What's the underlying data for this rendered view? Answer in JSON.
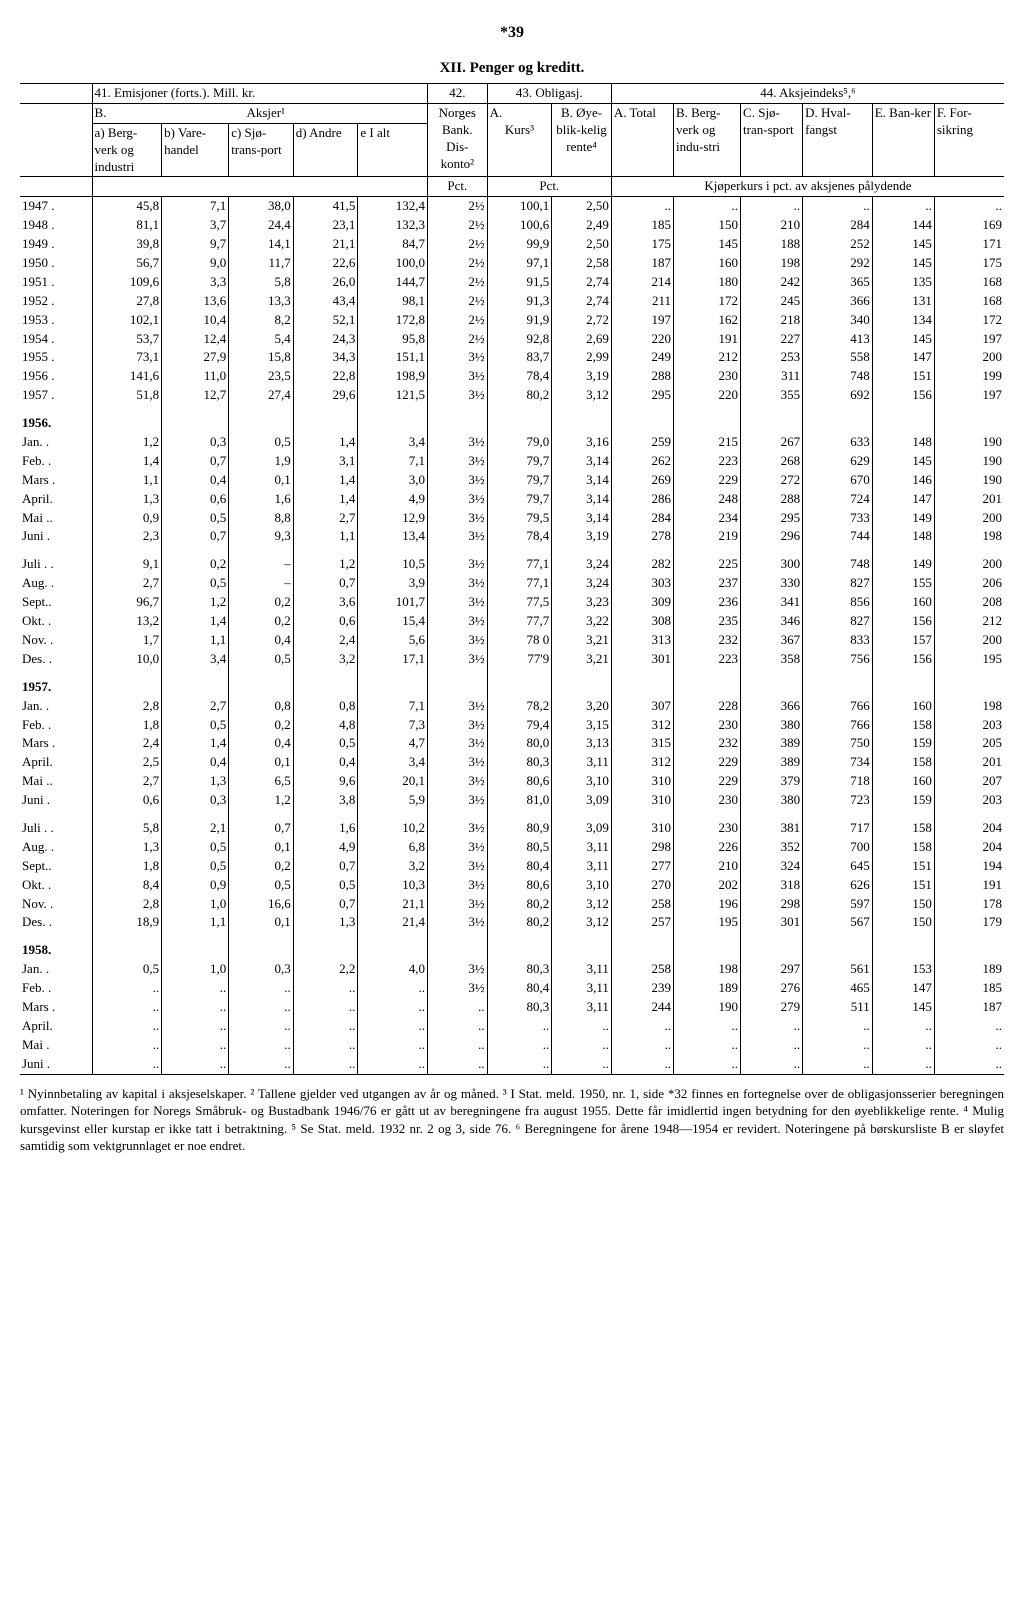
{
  "page_number": "*39",
  "title": "XII. Penger og kreditt.",
  "header": {
    "h41": "41.  Emisjoner (forts.).  Mill. kr.",
    "h42": "42.",
    "h43": "43. Obligasj.",
    "h44": "44.  Aksjeindeks⁵,⁶",
    "B": "B.",
    "Aksjer": "Aksjer¹",
    "Norges": "Norges Bank. Dis-konto²",
    "A": "A.",
    "Bop": "B. Øye-blik-kelig rente⁴",
    "Kurs": "Kurs³",
    "a": "a) Berg-verk og industri",
    "b": "b) Vare-handel",
    "c": "c) Sjø-trans-port",
    "d": "d) Andre",
    "e": "e I alt",
    "Ait": "A. Total",
    "Bit": "B. Berg-verk og indu-stri",
    "Cit": "C. Sjø-tran-sport",
    "Dit": "D. Hval-fangst",
    "Eit": "E. Ban-ker",
    "Fit": "F. For-sikring",
    "Pct": "Pct.",
    "Kjoper": "Kjøperkurs i pct. av aksjenes pålydende"
  },
  "rows": [
    {
      "label": "1947 .",
      "c": [
        "45,8",
        "7,1",
        "38,0",
        "41,5",
        "132,4",
        "2½",
        "100,1",
        "2,50",
        "..",
        "..",
        "..",
        "..",
        "..",
        ".."
      ]
    },
    {
      "label": "1948 .",
      "c": [
        "81,1",
        "3,7",
        "24,4",
        "23,1",
        "132,3",
        "2½",
        "100,6",
        "2,49",
        "185",
        "150",
        "210",
        "284",
        "144",
        "169"
      ]
    },
    {
      "label": "1949 .",
      "c": [
        "39,8",
        "9,7",
        "14,1",
        "21,1",
        "84,7",
        "2½",
        "99,9",
        "2,50",
        "175",
        "145",
        "188",
        "252",
        "145",
        "171"
      ]
    },
    {
      "label": "1950 .",
      "c": [
        "56,7",
        "9,0",
        "11,7",
        "22,6",
        "100,0",
        "2½",
        "97,1",
        "2,58",
        "187",
        "160",
        "198",
        "292",
        "145",
        "175"
      ]
    },
    {
      "label": "1951 .",
      "c": [
        "109,6",
        "3,3",
        "5,8",
        "26,0",
        "144,7",
        "2½",
        "91,5",
        "2,74",
        "214",
        "180",
        "242",
        "365",
        "135",
        "168"
      ]
    },
    {
      "label": "1952 .",
      "c": [
        "27,8",
        "13,6",
        "13,3",
        "43,4",
        "98,1",
        "2½",
        "91,3",
        "2,74",
        "211",
        "172",
        "245",
        "366",
        "131",
        "168"
      ]
    },
    {
      "label": "1953 .",
      "c": [
        "102,1",
        "10,4",
        "8,2",
        "52,1",
        "172,8",
        "2½",
        "91,9",
        "2,72",
        "197",
        "162",
        "218",
        "340",
        "134",
        "172"
      ]
    },
    {
      "label": "1954 .",
      "c": [
        "53,7",
        "12,4",
        "5,4",
        "24,3",
        "95,8",
        "2½",
        "92,8",
        "2,69",
        "220",
        "191",
        "227",
        "413",
        "145",
        "197"
      ]
    },
    {
      "label": "1955 .",
      "c": [
        "73,1",
        "27,9",
        "15,8",
        "34,3",
        "151,1",
        "3½",
        "83,7",
        "2,99",
        "249",
        "212",
        "253",
        "558",
        "147",
        "200"
      ]
    },
    {
      "label": "1956 .",
      "c": [
        "141,6",
        "11,0",
        "23,5",
        "22,8",
        "198,9",
        "3½",
        "78,4",
        "3,19",
        "288",
        "230",
        "311",
        "748",
        "151",
        "199"
      ]
    },
    {
      "label": "1957 .",
      "c": [
        "51,8",
        "12,7",
        "27,4",
        "29,6",
        "121,5",
        "3½",
        "80,2",
        "3,12",
        "295",
        "220",
        "355",
        "692",
        "156",
        "197"
      ]
    },
    {
      "label": "1956.",
      "head": true
    },
    {
      "label": "Jan. .",
      "c": [
        "1,2",
        "0,3",
        "0,5",
        "1,4",
        "3,4",
        "3½",
        "79,0",
        "3,16",
        "259",
        "215",
        "267",
        "633",
        "148",
        "190"
      ]
    },
    {
      "label": "Feb. .",
      "c": [
        "1,4",
        "0,7",
        "1,9",
        "3,1",
        "7,1",
        "3½",
        "79,7",
        "3,14",
        "262",
        "223",
        "268",
        "629",
        "145",
        "190"
      ]
    },
    {
      "label": "Mars .",
      "c": [
        "1,1",
        "0,4",
        "0,1",
        "1,4",
        "3,0",
        "3½",
        "79,7",
        "3,14",
        "269",
        "229",
        "272",
        "670",
        "146",
        "190"
      ]
    },
    {
      "label": "April.",
      "c": [
        "1,3",
        "0,6",
        "1,6",
        "1,4",
        "4,9",
        "3½",
        "79,7",
        "3,14",
        "286",
        "248",
        "288",
        "724",
        "147",
        "201"
      ]
    },
    {
      "label": "Mai ..",
      "c": [
        "0,9",
        "0,5",
        "8,8",
        "2,7",
        "12,9",
        "3½",
        "79,5",
        "3,14",
        "284",
        "234",
        "295",
        "733",
        "149",
        "200"
      ]
    },
    {
      "label": "Juni .",
      "c": [
        "2,3",
        "0,7",
        "9,3",
        "1,1",
        "13,4",
        "3½",
        "78,4",
        "3,19",
        "278",
        "219",
        "296",
        "744",
        "148",
        "198"
      ]
    },
    {
      "label": "Juli . .",
      "gap": true,
      "c": [
        "9,1",
        "0,2",
        "–",
        "1,2",
        "10,5",
        "3½",
        "77,1",
        "3,24",
        "282",
        "225",
        "300",
        "748",
        "149",
        "200"
      ]
    },
    {
      "label": "Aug. .",
      "c": [
        "2,7",
        "0,5",
        "–",
        "0,7",
        "3,9",
        "3½",
        "77,1",
        "3,24",
        "303",
        "237",
        "330",
        "827",
        "155",
        "206"
      ]
    },
    {
      "label": "Sept..",
      "c": [
        "96,7",
        "1,2",
        "0,2",
        "3,6",
        "101,7",
        "3½",
        "77,5",
        "3,23",
        "309",
        "236",
        "341",
        "856",
        "160",
        "208"
      ]
    },
    {
      "label": "Okt. .",
      "c": [
        "13,2",
        "1,4",
        "0,2",
        "0,6",
        "15,4",
        "3½",
        "77,7",
        "3,22",
        "308",
        "235",
        "346",
        "827",
        "156",
        "212"
      ]
    },
    {
      "label": "Nov. .",
      "c": [
        "1,7",
        "1,1",
        "0,4",
        "2,4",
        "5,6",
        "3½",
        "78 0",
        "3,21",
        "313",
        "232",
        "367",
        "833",
        "157",
        "200"
      ]
    },
    {
      "label": "Des. .",
      "c": [
        "10,0",
        "3,4",
        "0,5",
        "3,2",
        "17,1",
        "3½",
        "77'9",
        "3,21",
        "301",
        "223",
        "358",
        "756",
        "156",
        "195"
      ]
    },
    {
      "label": "1957.",
      "head": true
    },
    {
      "label": "Jan. .",
      "c": [
        "2,8",
        "2,7",
        "0,8",
        "0,8",
        "7,1",
        "3½",
        "78,2",
        "3,20",
        "307",
        "228",
        "366",
        "766",
        "160",
        "198"
      ]
    },
    {
      "label": "Feb. .",
      "c": [
        "1,8",
        "0,5",
        "0,2",
        "4,8",
        "7,3",
        "3½",
        "79,4",
        "3,15",
        "312",
        "230",
        "380",
        "766",
        "158",
        "203"
      ]
    },
    {
      "label": "Mars .",
      "c": [
        "2,4",
        "1,4",
        "0,4",
        "0,5",
        "4,7",
        "3½",
        "80,0",
        "3,13",
        "315",
        "232",
        "389",
        "750",
        "159",
        "205"
      ]
    },
    {
      "label": "April.",
      "c": [
        "2,5",
        "0,4",
        "0,1",
        "0,4",
        "3,4",
        "3½",
        "80,3",
        "3,11",
        "312",
        "229",
        "389",
        "734",
        "158",
        "201"
      ]
    },
    {
      "label": "Mai ..",
      "c": [
        "2,7",
        "1,3",
        "6,5",
        "9,6",
        "20,1",
        "3½",
        "80,6",
        "3,10",
        "310",
        "229",
        "379",
        "718",
        "160",
        "207"
      ]
    },
    {
      "label": "Juni .",
      "c": [
        "0,6",
        "0,3",
        "1,2",
        "3,8",
        "5,9",
        "3½",
        "81,0",
        "3,09",
        "310",
        "230",
        "380",
        "723",
        "159",
        "203"
      ]
    },
    {
      "label": "Juli . .",
      "gap": true,
      "c": [
        "5,8",
        "2,1",
        "0,7",
        "1,6",
        "10,2",
        "3½",
        "80,9",
        "3,09",
        "310",
        "230",
        "381",
        "717",
        "158",
        "204"
      ]
    },
    {
      "label": "Aug. .",
      "c": [
        "1,3",
        "0,5",
        "0,1",
        "4,9",
        "6,8",
        "3½",
        "80,5",
        "3,11",
        "298",
        "226",
        "352",
        "700",
        "158",
        "204"
      ]
    },
    {
      "label": "Sept..",
      "c": [
        "1,8",
        "0,5",
        "0,2",
        "0,7",
        "3,2",
        "3½",
        "80,4",
        "3,11",
        "277",
        "210",
        "324",
        "645",
        "151",
        "194"
      ]
    },
    {
      "label": "Okt. .",
      "c": [
        "8,4",
        "0,9",
        "0,5",
        "0,5",
        "10,3",
        "3½",
        "80,6",
        "3,10",
        "270",
        "202",
        "318",
        "626",
        "151",
        "191"
      ]
    },
    {
      "label": "Nov. .",
      "c": [
        "2,8",
        "1,0",
        "16,6",
        "0,7",
        "21,1",
        "3½",
        "80,2",
        "3,12",
        "258",
        "196",
        "298",
        "597",
        "150",
        "178"
      ]
    },
    {
      "label": "Des. .",
      "c": [
        "18,9",
        "1,1",
        "0,1",
        "1,3",
        "21,4",
        "3½",
        "80,2",
        "3,12",
        "257",
        "195",
        "301",
        "567",
        "150",
        "179"
      ]
    },
    {
      "label": "1958.",
      "head": true
    },
    {
      "label": "Jan. .",
      "c": [
        "0,5",
        "1,0",
        "0,3",
        "2,2",
        "4,0",
        "3½",
        "80,3",
        "3,11",
        "258",
        "198",
        "297",
        "561",
        "153",
        "189"
      ]
    },
    {
      "label": "Feb. .",
      "c": [
        "..",
        "..",
        "..",
        "..",
        "..",
        "3½",
        "80,4",
        "3,11",
        "239",
        "189",
        "276",
        "465",
        "147",
        "185"
      ]
    },
    {
      "label": "Mars .",
      "c": [
        "..",
        "..",
        "..",
        "..",
        "..",
        "..",
        "80,3",
        "3,11",
        "244",
        "190",
        "279",
        "511",
        "145",
        "187"
      ]
    },
    {
      "label": "April.",
      "c": [
        "..",
        "..",
        "..",
        "..",
        "..",
        "..",
        "..",
        "..",
        "..",
        "..",
        "..",
        "..",
        "..",
        ".."
      ]
    },
    {
      "label": "Mai  .",
      "c": [
        "..",
        "..",
        "..",
        "..",
        "..",
        "..",
        "..",
        "..",
        "..",
        "..",
        "..",
        "..",
        "..",
        ".."
      ]
    },
    {
      "label": "Juni .",
      "c": [
        "..",
        "..",
        "..",
        "..",
        "..",
        "..",
        "..",
        "..",
        "..",
        "..",
        "..",
        "..",
        "..",
        ".."
      ]
    }
  ],
  "footnote": "¹ Nyinnbetaling av kapital i aksjeselskaper. ² Tallene gjelder ved utgangen av år og måned. ³ I Stat. meld. 1950, nr. 1, side *32 finnes en fortegnelse over de obligasjonsserier beregningen omfatter. Noteringen for Noregs Småbruk- og Bustadbank 1946/76 er gått ut av beregningene fra august 1955. Dette får imidlertid ingen betydning for den øyeblikkelige rente. ⁴ Mulig kursgevinst eller kurstap er ikke tatt i betraktning. ⁵ Se Stat. meld. 1932 nr. 2 og 3, side 76. ⁶ Beregningene for årene 1948—1954 er revidert. Noteringene på børskursliste B er sløyfet samtidig som vektgrunnlaget er noe endret."
}
